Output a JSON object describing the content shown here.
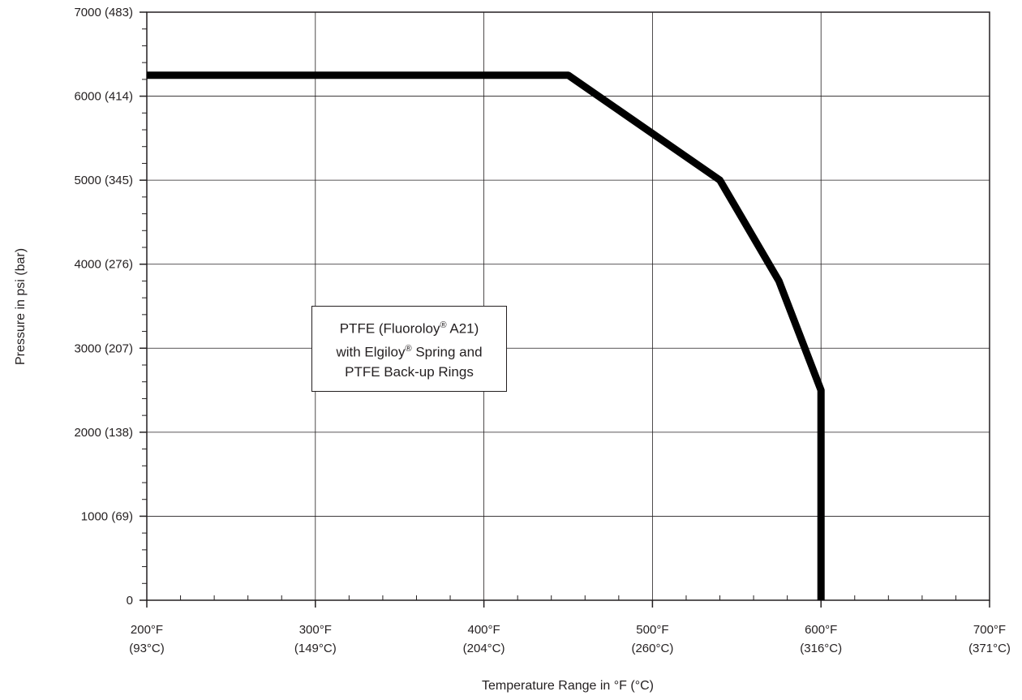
{
  "chart_data": {
    "type": "line",
    "xlabel": "Temperature Range in °F (°C)",
    "ylabel": "Pressure in psi (bar)",
    "xlim": [
      200,
      700
    ],
    "ylim": [
      0,
      7000
    ],
    "x_ticks": [
      {
        "value": 200,
        "label_f": "200°F",
        "label_c": "(93°C)"
      },
      {
        "value": 300,
        "label_f": "300°F",
        "label_c": "(149°C)"
      },
      {
        "value": 400,
        "label_f": "400°F",
        "label_c": "(204°C)"
      },
      {
        "value": 500,
        "label_f": "500°F",
        "label_c": "(260°C)"
      },
      {
        "value": 600,
        "label_f": "600°F",
        "label_c": "(316°C)"
      },
      {
        "value": 700,
        "label_f": "700°F",
        "label_c": "(371°C)"
      }
    ],
    "y_ticks": [
      {
        "value": 0,
        "label": "0"
      },
      {
        "value": 1000,
        "label": "1000 (69)"
      },
      {
        "value": 2000,
        "label": "2000 (138)"
      },
      {
        "value": 3000,
        "label": "3000 (207)"
      },
      {
        "value": 4000,
        "label": "4000 (276)"
      },
      {
        "value": 5000,
        "label": "5000 (345)"
      },
      {
        "value": 6000,
        "label": "6000 (414)"
      },
      {
        "value": 7000,
        "label": "7000 (483)"
      }
    ],
    "x_minor_step": 20,
    "y_minor_step": 200,
    "grid": true,
    "series": [
      {
        "x": [
          200,
          450,
          540,
          575,
          600,
          600
        ],
        "y": [
          6250,
          6250,
          5000,
          3800,
          2500,
          0
        ],
        "color": "#000000"
      }
    ],
    "annotation": {
      "line1": "PTFE (Fluoroloy",
      "line1_sup": "®",
      "line1_end": " A21)",
      "line2": "with Elgiloy",
      "line2_sup": "®",
      "line2_end": " Spring and",
      "line3": "PTFE Back-up Rings"
    }
  }
}
